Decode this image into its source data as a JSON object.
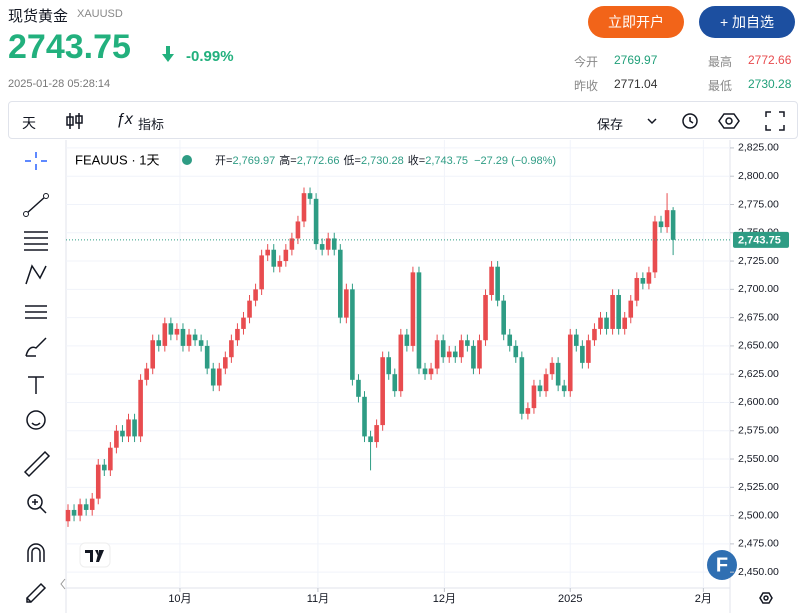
{
  "header": {
    "title": "现货黄金",
    "symbol": "XAUUSD",
    "price": "2743.75",
    "change": "-0.99%",
    "time": "2025-01-28 05:28:14",
    "buttons": [
      "立即开户",
      "+ 加自选"
    ],
    "stats": [
      {
        "label": "今开",
        "value": "2769.97"
      },
      {
        "label": "最高",
        "value": "2772.66"
      },
      {
        "label": "昨收",
        "value": "2771.04"
      },
      {
        "label": "最低",
        "value": "2730.28"
      }
    ]
  },
  "toolbar": {
    "interval": "天",
    "indicators": "指标",
    "save": "保存"
  },
  "chart_data": {
    "type": "candlestick",
    "legend": {
      "symbol": "FEAUUS · 1天",
      "items": [
        {
          "key": "开=",
          "value": "2,769.97"
        },
        {
          "key": "高=",
          "value": "2,772.66"
        },
        {
          "key": "低=",
          "value": "2,730.28"
        },
        {
          "key": "收=",
          "value": "2,743.75"
        }
      ],
      "change": "−27.29 (−0.98%)"
    },
    "x": [
      0,
      1,
      2,
      3,
      4,
      5,
      6,
      7,
      8,
      9,
      10,
      11,
      12,
      13,
      14,
      15,
      16,
      17,
      18,
      19,
      20,
      21,
      22,
      23,
      24,
      25,
      26,
      27,
      28,
      29,
      30,
      31,
      32,
      33,
      34,
      35,
      36,
      37,
      38,
      39,
      40,
      41,
      42,
      43,
      44,
      45,
      46,
      47,
      48,
      49,
      50,
      51,
      52,
      53,
      54,
      55,
      56,
      57,
      58,
      59,
      60,
      61,
      62,
      63,
      64,
      65,
      66,
      67,
      68,
      69,
      70,
      71,
      72,
      73,
      74,
      75,
      76,
      77,
      78,
      79,
      80,
      81,
      82,
      83,
      84,
      85,
      86,
      87,
      88,
      89,
      90,
      91,
      92,
      93,
      94,
      95,
      96,
      97,
      98,
      99,
      100
    ],
    "open": [
      2495,
      2505,
      2500,
      2510,
      2505,
      2515,
      2545,
      2540,
      2560,
      2575,
      2570,
      2585,
      2570,
      2620,
      2630,
      2655,
      2650,
      2670,
      2660,
      2665,
      2650,
      2660,
      2655,
      2650,
      2630,
      2615,
      2630,
      2640,
      2655,
      2665,
      2675,
      2690,
      2700,
      2730,
      2735,
      2720,
      2725,
      2735,
      2745,
      2760,
      2785,
      2780,
      2740,
      2735,
      2745,
      2735,
      2675,
      2700,
      2620,
      2605,
      2570,
      2565,
      2580,
      2640,
      2625,
      2610,
      2660,
      2650,
      2715,
      2630,
      2625,
      2630,
      2655,
      2640,
      2645,
      2640,
      2655,
      2650,
      2630,
      2655,
      2695,
      2720,
      2690,
      2660,
      2650,
      2640,
      2590,
      2595,
      2615,
      2610,
      2625,
      2635,
      2615,
      2610,
      2660,
      2650,
      2635,
      2655,
      2665,
      2675,
      2665,
      2695,
      2665,
      2675,
      2690,
      2710,
      2705,
      2715,
      2760,
      2755,
      2769.97
    ],
    "high": [
      2510,
      2510,
      2515,
      2515,
      2520,
      2550,
      2550,
      2565,
      2580,
      2580,
      2590,
      2590,
      2625,
      2635,
      2660,
      2660,
      2675,
      2675,
      2670,
      2670,
      2665,
      2665,
      2660,
      2655,
      2635,
      2635,
      2645,
      2660,
      2670,
      2680,
      2695,
      2705,
      2735,
      2740,
      2740,
      2730,
      2740,
      2750,
      2765,
      2790,
      2790,
      2785,
      2745,
      2750,
      2750,
      2740,
      2705,
      2705,
      2625,
      2610,
      2575,
      2585,
      2645,
      2645,
      2630,
      2665,
      2665,
      2720,
      2720,
      2635,
      2635,
      2660,
      2660,
      2650,
      2650,
      2660,
      2660,
      2655,
      2660,
      2700,
      2725,
      2725,
      2695,
      2665,
      2655,
      2645,
      2600,
      2620,
      2620,
      2630,
      2640,
      2640,
      2620,
      2665,
      2665,
      2655,
      2660,
      2670,
      2680,
      2680,
      2700,
      2700,
      2680,
      2695,
      2715,
      2715,
      2720,
      2765,
      2765,
      2785,
      2772.66
    ],
    "low": [
      2490,
      2495,
      2495,
      2500,
      2500,
      2510,
      2535,
      2535,
      2555,
      2565,
      2565,
      2565,
      2565,
      2615,
      2625,
      2645,
      2645,
      2655,
      2655,
      2645,
      2645,
      2650,
      2645,
      2625,
      2610,
      2610,
      2625,
      2635,
      2650,
      2660,
      2670,
      2685,
      2695,
      2725,
      2715,
      2715,
      2720,
      2730,
      2740,
      2755,
      2775,
      2735,
      2730,
      2730,
      2730,
      2670,
      2670,
      2615,
      2600,
      2565,
      2540,
      2560,
      2575,
      2620,
      2605,
      2605,
      2645,
      2645,
      2625,
      2620,
      2620,
      2625,
      2635,
      2635,
      2635,
      2635,
      2645,
      2625,
      2625,
      2650,
      2690,
      2685,
      2655,
      2645,
      2635,
      2585,
      2585,
      2590,
      2605,
      2605,
      2620,
      2610,
      2605,
      2605,
      2645,
      2630,
      2630,
      2650,
      2660,
      2660,
      2660,
      2660,
      2660,
      2670,
      2685,
      2700,
      2700,
      2710,
      2750,
      2750,
      2730.28
    ],
    "close": [
      2505,
      2500,
      2510,
      2505,
      2515,
      2545,
      2540,
      2560,
      2575,
      2570,
      2585,
      2570,
      2620,
      2630,
      2655,
      2650,
      2670,
      2660,
      2665,
      2650,
      2660,
      2655,
      2650,
      2630,
      2615,
      2630,
      2640,
      2655,
      2665,
      2675,
      2690,
      2700,
      2730,
      2735,
      2720,
      2725,
      2735,
      2745,
      2760,
      2785,
      2780,
      2740,
      2735,
      2745,
      2735,
      2675,
      2700,
      2620,
      2605,
      2570,
      2565,
      2580,
      2640,
      2625,
      2610,
      2660,
      2650,
      2715,
      2630,
      2625,
      2630,
      2655,
      2640,
      2645,
      2640,
      2655,
      2650,
      2630,
      2655,
      2695,
      2720,
      2690,
      2660,
      2650,
      2640,
      2590,
      2595,
      2615,
      2610,
      2625,
      2635,
      2615,
      2610,
      2660,
      2650,
      2635,
      2655,
      2665,
      2675,
      2665,
      2695,
      2665,
      2675,
      2690,
      2710,
      2705,
      2715,
      2760,
      2755,
      2770,
      2743.75
    ],
    "up_color": "#e84c4f",
    "down_color": "#2e9c84",
    "xlim": [
      -0.33,
      109.4
    ],
    "xticks": [
      {
        "value": 18.5,
        "label": "10月"
      },
      {
        "value": 41.3,
        "label": "11月"
      },
      {
        "value": 62.2,
        "label": "12月"
      },
      {
        "value": 83,
        "label": "2025"
      },
      {
        "value": 105,
        "label": "2月"
      }
    ],
    "ylim": [
      2436,
      2832
    ],
    "yticks": [
      {
        "value": 2450,
        "label": "2,450.00"
      },
      {
        "value": 2475,
        "label": "2,475.00"
      },
      {
        "value": 2500,
        "label": "2,500.00"
      },
      {
        "value": 2525,
        "label": "2,525.00"
      },
      {
        "value": 2550,
        "label": "2,550.00"
      },
      {
        "value": 2575,
        "label": "2,575.00"
      },
      {
        "value": 2600,
        "label": "2,600.00"
      },
      {
        "value": 2625,
        "label": "2,625.00"
      },
      {
        "value": 2650,
        "label": "2,650.00"
      },
      {
        "value": 2675,
        "label": "2,675.00"
      },
      {
        "value": 2700,
        "label": "2,700.00"
      },
      {
        "value": 2725,
        "label": "2,725.00"
      },
      {
        "value": 2750,
        "label": "2,750.00"
      },
      {
        "value": 2775,
        "label": "2,775.00"
      },
      {
        "value": 2800,
        "label": "2,800.00"
      },
      {
        "value": 2825,
        "label": "2,825.00"
      }
    ],
    "last_price": {
      "value": 2743.75,
      "label": "2,743.75"
    },
    "grid": true
  }
}
